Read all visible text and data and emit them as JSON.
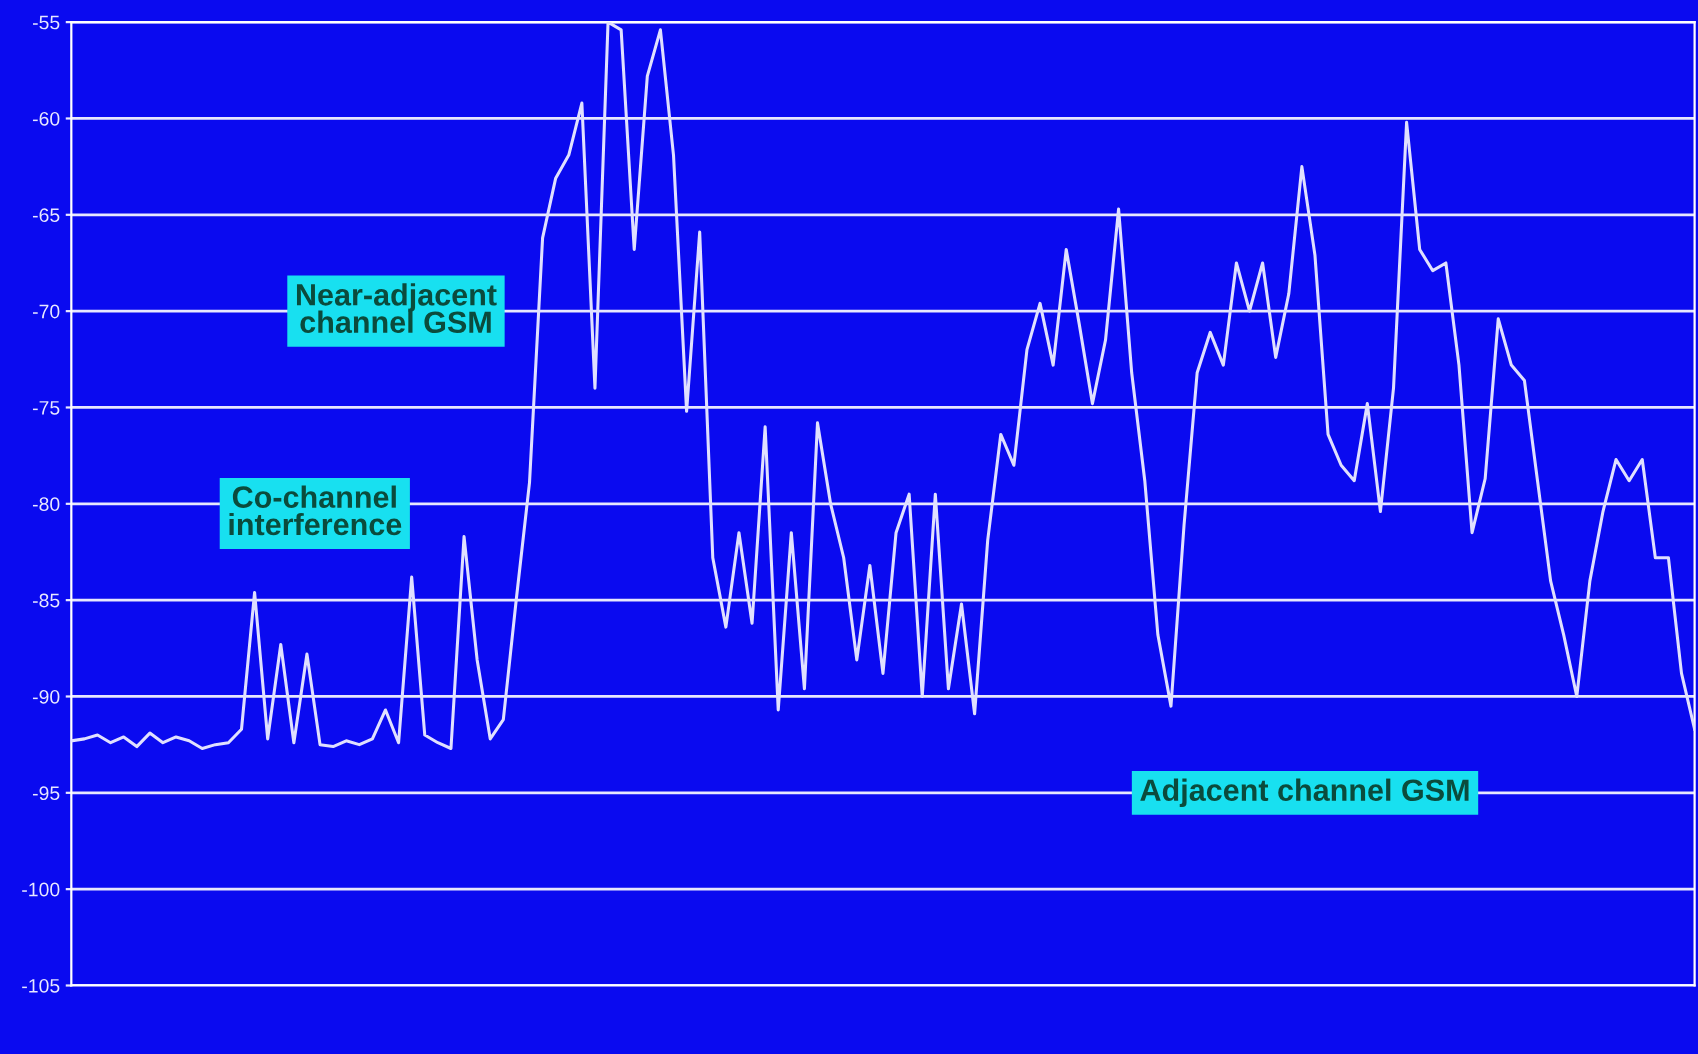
{
  "chart_data": {
    "type": "line",
    "categories": [
      null,
      null,
      null,
      null,
      null,
      null,
      null,
      null,
      null,
      null,
      null,
      null,
      null,
      null,
      null,
      null,
      null,
      null,
      null,
      null,
      null,
      null,
      null,
      null,
      null,
      null,
      null,
      null,
      null,
      null,
      null,
      null,
      null,
      null,
      null,
      null,
      null,
      null,
      null,
      null,
      null,
      null,
      null,
      null,
      null,
      null,
      null,
      null,
      null,
      null,
      null,
      null,
      null,
      null,
      null,
      null,
      null,
      null,
      null,
      null,
      null,
      null,
      null,
      null,
      null,
      null,
      null,
      null,
      null,
      null,
      null,
      null,
      null,
      null,
      null,
      null,
      null,
      null,
      null,
      null,
      null,
      null,
      null,
      null,
      null,
      null,
      null,
      null,
      null,
      null,
      null,
      null,
      null,
      null,
      null,
      null,
      null,
      null,
      null,
      null,
      null,
      null,
      null,
      null,
      null,
      null,
      null,
      null,
      null,
      null,
      null,
      null,
      null,
      null,
      null,
      null,
      null,
      null,
      null,
      null,
      null,
      null,
      null,
      null,
      null
    ],
    "series": [
      {
        "color": "#e0e0ff",
        "values": [
          -92.3,
          -92.2,
          -92.0,
          -92.4,
          -92.1,
          -92.6,
          -91.9,
          -92.4,
          -92.1,
          -92.3,
          -92.7,
          -92.5,
          -92.4,
          -91.7,
          -84.6,
          -92.2,
          -87.3,
          -92.4,
          -87.8,
          -92.5,
          -92.6,
          -92.3,
          -92.5,
          -92.2,
          -90.7,
          -92.4,
          -83.8,
          -92.0,
          -92.4,
          -92.7,
          -81.7,
          -88.1,
          -92.2,
          -91.2,
          -84.9,
          -78.9,
          -66.2,
          -63.1,
          -61.9,
          -59.2,
          -74.0,
          -55.0,
          -55.4,
          -66.8,
          -57.8,
          -55.4,
          -61.9,
          -75.2,
          -65.9,
          -82.8,
          -86.4,
          -81.5,
          -86.2,
          -76.0,
          -90.7,
          -81.5,
          -89.6,
          -75.8,
          -80.0,
          -82.8,
          -88.1,
          -83.2,
          -88.8,
          -81.5,
          -79.5,
          -90.0,
          -79.5,
          -89.6,
          -85.2,
          -90.9,
          -81.9,
          -76.4,
          -78.0,
          -72.0,
          -69.6,
          -72.8,
          -66.8,
          -70.7,
          -74.8,
          -71.5,
          -64.7,
          -73.2,
          -78.8,
          -86.8,
          -90.5,
          -81.1,
          -73.2,
          -71.1,
          -72.8,
          -67.5,
          -70.0,
          -67.5,
          -72.4,
          -69.1,
          -62.5,
          -67.1,
          -76.4,
          -78.0,
          -78.8,
          -74.8,
          -80.4,
          -74.0,
          -60.2,
          -66.8,
          -67.9,
          -67.5,
          -72.8,
          -81.5,
          -78.7,
          -70.4,
          -72.8,
          -73.6,
          -78.8,
          -84.0,
          -86.8,
          -90.0,
          -84.0,
          -80.4,
          -77.7,
          -78.8,
          -77.7,
          -82.8,
          -82.8,
          -88.8,
          -91.7
        ]
      }
    ],
    "ylim": [
      -105,
      -55
    ],
    "yticks": [
      -105,
      -100,
      -95,
      -90,
      -85,
      -80,
      -75,
      -70,
      -65,
      -60,
      -55
    ],
    "tick_labels": "y",
    "grid": "y",
    "annotations": [
      "Co-channel\ninterference",
      "Near-adjacent\nchannel GSM",
      "Adjacent channel GSM"
    ]
  }
}
